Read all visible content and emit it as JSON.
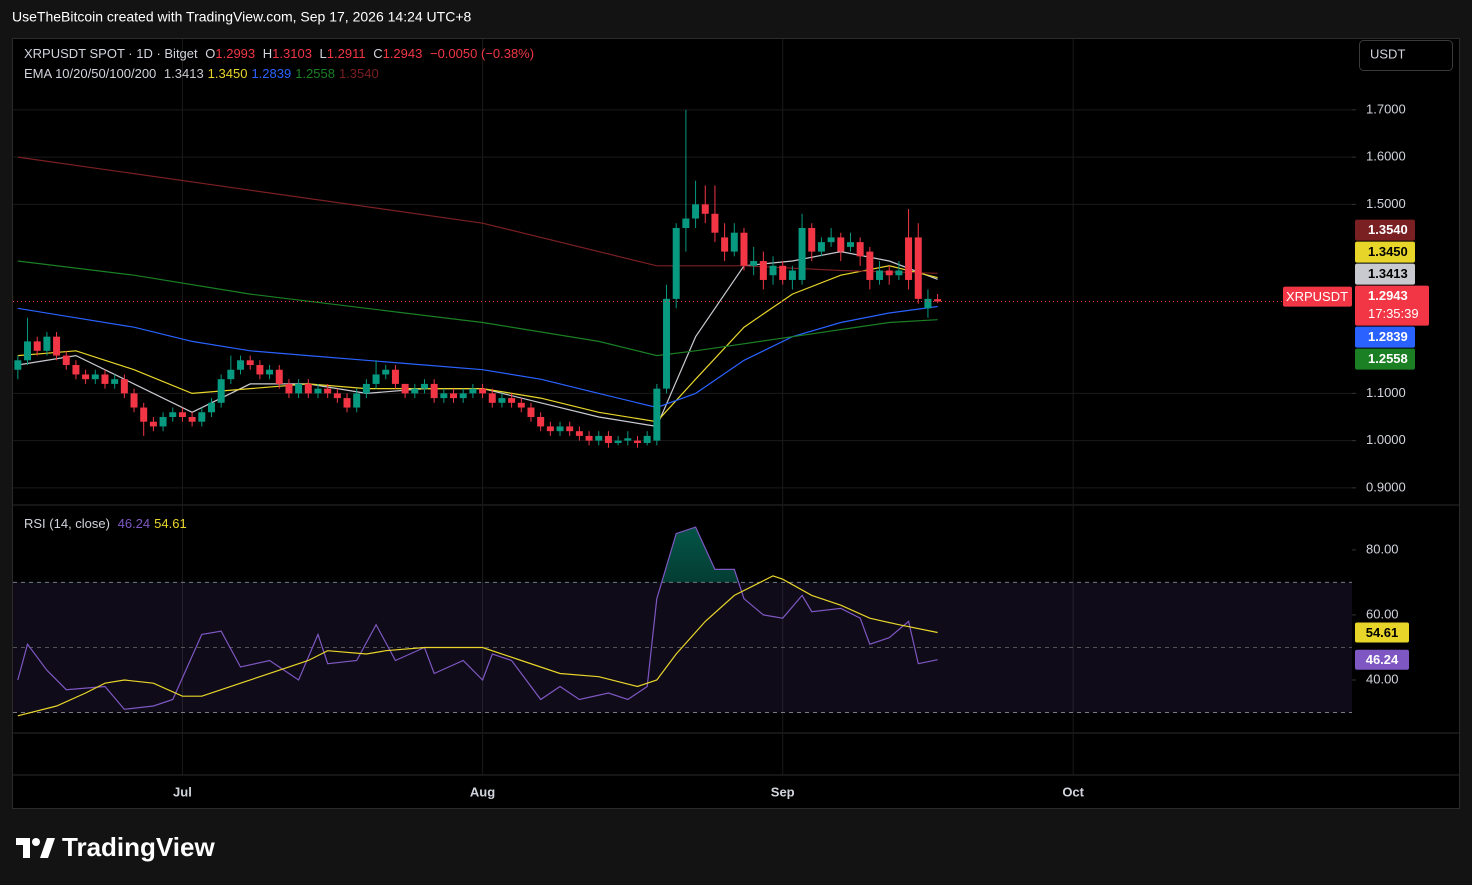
{
  "header": "UseTheBitcoin created with TradingView.com, Sep 17, 2026 14:24 UTC+8",
  "currency_button": "USDT",
  "brand": "TradingView",
  "chart_data": [
    {
      "type": "candlestick",
      "title": "XRPUSDT SPOT · 1D · Bitget",
      "legend_ohlc": [
        {
          "label": "O",
          "value": "1.2993"
        },
        {
          "label": "H",
          "value": "1.3103"
        },
        {
          "label": "L",
          "value": "1.2911"
        },
        {
          "label": "C",
          "value": "1.2943"
        }
      ],
      "change": "−0.0050 (−0.38%)",
      "up_color": "#089981",
      "down_color": "#f23645",
      "open": [
        1.15,
        1.17,
        1.21,
        1.19,
        1.22,
        1.18,
        1.16,
        1.14,
        1.13,
        1.14,
        1.12,
        1.13,
        1.1,
        1.07,
        1.04,
        1.03,
        1.05,
        1.06,
        1.05,
        1.04,
        1.06,
        1.08,
        1.13,
        1.15,
        1.17,
        1.16,
        1.14,
        1.15,
        1.12,
        1.1,
        1.12,
        1.1,
        1.11,
        1.1,
        1.09,
        1.07,
        1.1,
        1.12,
        1.14,
        1.15,
        1.12,
        1.1,
        1.11,
        1.12,
        1.09,
        1.1,
        1.09,
        1.1,
        1.11,
        1.1,
        1.08,
        1.09,
        1.08,
        1.07,
        1.05,
        1.03,
        1.02,
        1.03,
        1.02,
        1.01,
        1.0,
        1.01,
        0.995,
        1.0,
        1.0,
        0.995,
        1.0,
        1.11,
        1.3,
        1.45,
        1.47,
        1.5,
        1.48,
        1.43,
        1.4,
        1.44,
        1.37,
        1.38,
        1.35,
        1.37,
        1.34,
        1.34,
        1.45,
        1.4,
        1.42,
        1.43,
        1.41,
        1.42,
        1.4,
        1.34,
        1.36,
        1.35,
        1.43,
        1.43,
        1.28,
        1.2993
      ],
      "high": [
        1.18,
        1.26,
        1.22,
        1.23,
        1.23,
        1.19,
        1.17,
        1.15,
        1.15,
        1.15,
        1.14,
        1.14,
        1.11,
        1.08,
        1.05,
        1.06,
        1.07,
        1.07,
        1.06,
        1.07,
        1.09,
        1.14,
        1.18,
        1.18,
        1.18,
        1.17,
        1.16,
        1.16,
        1.13,
        1.13,
        1.13,
        1.12,
        1.12,
        1.11,
        1.1,
        1.11,
        1.13,
        1.17,
        1.16,
        1.16,
        1.12,
        1.12,
        1.13,
        1.13,
        1.11,
        1.11,
        1.11,
        1.12,
        1.12,
        1.11,
        1.1,
        1.1,
        1.09,
        1.08,
        1.06,
        1.04,
        1.04,
        1.04,
        1.03,
        1.02,
        1.02,
        1.02,
        1.01,
        1.02,
        1.01,
        1.02,
        1.12,
        1.33,
        1.46,
        1.7,
        1.55,
        1.54,
        1.54,
        1.46,
        1.46,
        1.45,
        1.41,
        1.4,
        1.39,
        1.38,
        1.37,
        1.48,
        1.46,
        1.43,
        1.45,
        1.44,
        1.44,
        1.43,
        1.41,
        1.38,
        1.37,
        1.38,
        1.49,
        1.46,
        1.32,
        1.3103
      ],
      "low": [
        1.13,
        1.16,
        1.18,
        1.18,
        1.17,
        1.15,
        1.13,
        1.12,
        1.12,
        1.11,
        1.11,
        1.09,
        1.06,
        1.01,
        1.02,
        1.02,
        1.04,
        1.04,
        1.03,
        1.03,
        1.05,
        1.07,
        1.12,
        1.14,
        1.15,
        1.13,
        1.13,
        1.11,
        1.09,
        1.09,
        1.09,
        1.09,
        1.09,
        1.08,
        1.06,
        1.06,
        1.09,
        1.11,
        1.13,
        1.11,
        1.09,
        1.09,
        1.1,
        1.08,
        1.08,
        1.08,
        1.08,
        1.09,
        1.09,
        1.07,
        1.07,
        1.07,
        1.06,
        1.04,
        1.02,
        1.01,
        1.01,
        1.01,
        1.0,
        0.99,
        0.99,
        0.985,
        0.99,
        0.99,
        0.985,
        0.99,
        0.99,
        1.1,
        1.28,
        1.4,
        1.45,
        1.46,
        1.42,
        1.38,
        1.39,
        1.36,
        1.35,
        1.32,
        1.33,
        1.33,
        1.32,
        1.33,
        1.38,
        1.39,
        1.41,
        1.38,
        1.4,
        1.37,
        1.32,
        1.33,
        1.33,
        1.34,
        1.32,
        1.29,
        1.26,
        1.2911
      ],
      "close": [
        1.17,
        1.21,
        1.19,
        1.22,
        1.18,
        1.16,
        1.14,
        1.13,
        1.14,
        1.12,
        1.13,
        1.1,
        1.07,
        1.04,
        1.03,
        1.05,
        1.06,
        1.05,
        1.04,
        1.06,
        1.08,
        1.13,
        1.15,
        1.17,
        1.16,
        1.14,
        1.15,
        1.12,
        1.1,
        1.12,
        1.1,
        1.11,
        1.1,
        1.09,
        1.07,
        1.1,
        1.12,
        1.14,
        1.15,
        1.12,
        1.1,
        1.11,
        1.12,
        1.09,
        1.1,
        1.09,
        1.1,
        1.11,
        1.1,
        1.08,
        1.09,
        1.08,
        1.07,
        1.05,
        1.03,
        1.02,
        1.03,
        1.02,
        1.01,
        1.0,
        1.01,
        0.995,
        1.0,
        1.005,
        0.995,
        1.01,
        1.11,
        1.3,
        1.45,
        1.47,
        1.5,
        1.48,
        1.44,
        1.4,
        1.44,
        1.37,
        1.38,
        1.34,
        1.37,
        1.34,
        1.36,
        1.45,
        1.4,
        1.42,
        1.43,
        1.4,
        1.42,
        1.39,
        1.34,
        1.36,
        1.35,
        1.36,
        1.34,
        1.3,
        1.3,
        1.2943
      ],
      "last_price": {
        "name": "XRPUSDT",
        "label": "1.2943",
        "countdown": "17:35:39"
      },
      "overlay_title": "EMA 10/20/50/100/200",
      "series": [
        {
          "color": "#c8cad0",
          "last_label": "1.3413",
          "x": [
            0,
            6,
            12,
            18,
            24,
            30,
            36,
            42,
            48,
            54,
            60,
            66,
            70,
            75,
            80,
            85,
            90,
            95
          ],
          "values": [
            1.16,
            1.18,
            1.12,
            1.06,
            1.12,
            1.12,
            1.1,
            1.11,
            1.11,
            1.08,
            1.05,
            1.03,
            1.22,
            1.37,
            1.38,
            1.4,
            1.38,
            1.3413
          ]
        },
        {
          "color": "#e8d52a",
          "last_label": "1.3450",
          "x": [
            0,
            6,
            12,
            18,
            24,
            30,
            36,
            42,
            48,
            54,
            60,
            66,
            70,
            75,
            80,
            85,
            90,
            95
          ],
          "values": [
            1.18,
            1.19,
            1.15,
            1.1,
            1.11,
            1.12,
            1.11,
            1.11,
            1.11,
            1.09,
            1.06,
            1.04,
            1.13,
            1.24,
            1.31,
            1.35,
            1.37,
            1.345
          ]
        },
        {
          "color": "#2962ff",
          "last_label": "1.2839",
          "x": [
            0,
            6,
            12,
            18,
            24,
            30,
            36,
            42,
            48,
            54,
            60,
            66,
            70,
            75,
            80,
            85,
            90,
            95
          ],
          "values": [
            1.28,
            1.26,
            1.24,
            1.21,
            1.19,
            1.18,
            1.17,
            1.16,
            1.15,
            1.13,
            1.1,
            1.07,
            1.1,
            1.17,
            1.22,
            1.25,
            1.27,
            1.2839
          ]
        },
        {
          "color": "#1b7f24",
          "last_label": "1.2558",
          "x": [
            0,
            12,
            24,
            36,
            48,
            60,
            66,
            70,
            80,
            90,
            95
          ],
          "values": [
            1.38,
            1.35,
            1.31,
            1.28,
            1.25,
            1.21,
            1.18,
            1.19,
            1.22,
            1.25,
            1.2558
          ]
        },
        {
          "color": "#7a1f22",
          "last_label": "1.3540",
          "x": [
            0,
            24,
            48,
            66,
            75,
            85,
            95
          ],
          "values": [
            1.6,
            1.53,
            1.46,
            1.37,
            1.37,
            1.36,
            1.354
          ]
        }
      ],
      "xlim": [
        -0.5,
        137.8
      ],
      "xticks": [
        {
          "value": 17,
          "label": "Jul"
        },
        {
          "value": 48,
          "label": "Aug"
        },
        {
          "value": 79,
          "label": "Sep"
        },
        {
          "value": 109,
          "label": "Oct"
        }
      ],
      "ylim": [
        0.868,
        1.852
      ],
      "yticks": [
        {
          "value": 0.9,
          "label": "0.9000"
        },
        {
          "value": 1.0,
          "label": "1.0000"
        },
        {
          "value": 1.1,
          "label": "1.1000"
        },
        {
          "value": 1.5,
          "label": "1.5000"
        },
        {
          "value": 1.6,
          "label": "1.6000"
        },
        {
          "value": 1.7,
          "label": "1.7000"
        }
      ],
      "grid": true
    },
    {
      "type": "line",
      "title": "RSI (14, close)",
      "series": [
        {
          "color": "#7e57c2",
          "last_label": "46.24",
          "x": [
            0,
            1,
            3,
            5,
            9,
            11,
            14,
            16,
            19,
            21,
            23,
            26,
            29,
            31,
            32,
            35,
            37,
            39,
            42,
            43,
            46,
            48,
            49,
            51,
            54,
            56,
            58,
            61,
            63,
            65,
            66,
            68,
            70,
            72,
            74,
            75,
            77,
            79,
            81,
            82,
            85,
            87,
            88,
            90,
            92,
            93,
            95
          ],
          "values": [
            40,
            51,
            43,
            37,
            38,
            31,
            32,
            34,
            54,
            55,
            44,
            46,
            40,
            54,
            45,
            46,
            57,
            46,
            50,
            42,
            46,
            40,
            48,
            46,
            34,
            38,
            34,
            36,
            34,
            38,
            65,
            85,
            87,
            74,
            74,
            65,
            60,
            59,
            66,
            61,
            62,
            59,
            51,
            53,
            58,
            45,
            46.24
          ]
        },
        {
          "color": "#e8d52a",
          "last_label": "54.61",
          "x": [
            0,
            4,
            7,
            9,
            11,
            14,
            17,
            19,
            23,
            27,
            30,
            32,
            36,
            38,
            42,
            48,
            52,
            56,
            60,
            64,
            66,
            68,
            71,
            74,
            78,
            79,
            82,
            85,
            88,
            91,
            95
          ],
          "values": [
            29,
            32,
            36,
            39,
            40,
            39,
            35,
            35,
            39,
            43,
            46,
            49,
            48,
            49,
            50,
            50,
            46,
            42,
            41,
            38,
            40,
            48,
            58,
            66,
            72,
            71,
            66,
            63,
            59,
            57,
            54.61
          ]
        }
      ],
      "bands": [
        30,
        70
      ],
      "midline": 50,
      "ylim": [
        23.7,
        93.8
      ],
      "yticks": [
        {
          "value": 40,
          "label": "40.00"
        },
        {
          "value": 60,
          "label": "60.00"
        },
        {
          "value": 80,
          "label": "80.00"
        }
      ]
    }
  ]
}
